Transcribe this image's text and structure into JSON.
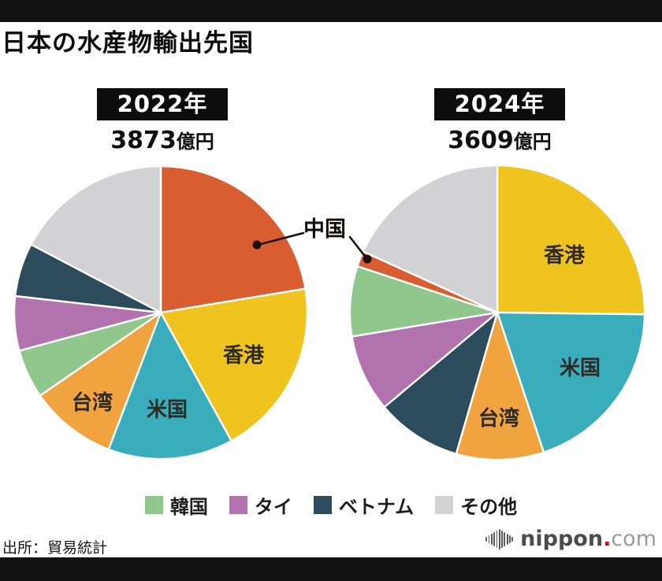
{
  "title": "日本の水産物輸出先国",
  "charts": [
    {
      "year_label": "2022年",
      "total_value": "3873",
      "total_unit": "億円"
    },
    {
      "year_label": "2024年",
      "total_value": "3609",
      "total_unit": "億円"
    }
  ],
  "annotation": {
    "label": "中国"
  },
  "chart_data": [
    {
      "type": "pie",
      "title": "2022年",
      "total_label": "3873億円",
      "start_angle_deg": 0,
      "direction": "clockwise",
      "slices": [
        {
          "id": "china",
          "label": "中国",
          "pct": 22.4,
          "color": "#D85E31"
        },
        {
          "id": "hongkong",
          "label": "香港",
          "pct": 19.6,
          "color": "#EFC41F"
        },
        {
          "id": "usa",
          "label": "米国",
          "pct": 13.8,
          "color": "#3AADBD"
        },
        {
          "id": "taiwan",
          "label": "台湾",
          "pct": 9.6,
          "color": "#F0A33F"
        },
        {
          "id": "korea",
          "label": "韓国",
          "pct": 5.4,
          "color": "#8FC78C"
        },
        {
          "id": "thailand",
          "label": "タイ",
          "pct": 6.0,
          "color": "#B172AD"
        },
        {
          "id": "vietnam",
          "label": "ベトナム",
          "pct": 5.9,
          "color": "#2C4C5E"
        },
        {
          "id": "others",
          "label": "その他",
          "pct": 17.3,
          "color": "#D2D1D3"
        }
      ]
    },
    {
      "type": "pie",
      "title": "2024年",
      "total_label": "3609億円",
      "start_angle_deg": 0,
      "direction": "clockwise",
      "slices": [
        {
          "id": "hongkong",
          "label": "香港",
          "pct": 25.2,
          "color": "#EFC41F"
        },
        {
          "id": "usa",
          "label": "米国",
          "pct": 19.7,
          "color": "#3AADBD"
        },
        {
          "id": "taiwan",
          "label": "台湾",
          "pct": 9.6,
          "color": "#F0A33F"
        },
        {
          "id": "vietnam",
          "label": "ベトナム",
          "pct": 9.4,
          "color": "#2C4C5E"
        },
        {
          "id": "thailand",
          "label": "タイ",
          "pct": 8.5,
          "color": "#B172AD"
        },
        {
          "id": "korea",
          "label": "韓国",
          "pct": 7.7,
          "color": "#8FC78C"
        },
        {
          "id": "china",
          "label": "中国",
          "pct": 1.7,
          "color": "#D85E31"
        },
        {
          "id": "others",
          "label": "その他",
          "pct": 18.2,
          "color": "#D2D1D3"
        }
      ]
    }
  ],
  "legend": [
    {
      "id": "korea",
      "label": "韓国",
      "color": "#8FC78C"
    },
    {
      "id": "thailand",
      "label": "タイ",
      "color": "#B172AD"
    },
    {
      "id": "vietnam",
      "label": "ベトナム",
      "color": "#2C4C5E"
    },
    {
      "id": "others",
      "label": "その他",
      "color": "#D2D1D3"
    }
  ],
  "source": "出所：貿易統計",
  "logo": {
    "icon": "soundwave-bars-icon",
    "name": "nippon",
    "dot": ".",
    "tld": "com"
  }
}
